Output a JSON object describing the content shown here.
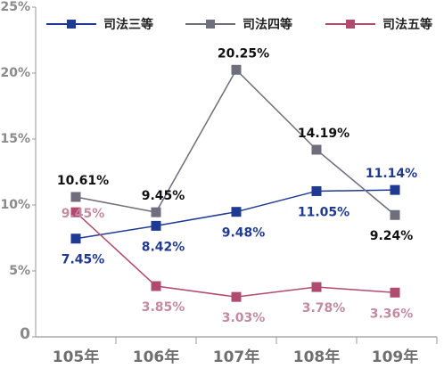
{
  "chart_data": {
    "type": "line",
    "categories": [
      "105年",
      "106年",
      "107年",
      "108年",
      "109年"
    ],
    "ylim": [
      0,
      25
    ],
    "yticks": [
      {
        "value": 0,
        "label": "0"
      },
      {
        "value": 5,
        "label": "5%"
      },
      {
        "value": 10,
        "label": "10%"
      },
      {
        "value": 15,
        "label": "15%"
      },
      {
        "value": 20,
        "label": "20%"
      },
      {
        "value": 25,
        "label": "25%"
      }
    ],
    "grid": false,
    "legend_position": "top",
    "series": [
      {
        "name": "司法三等",
        "color": "#1f3a93",
        "label_color": "#1f3a93",
        "values": [
          7.45,
          8.42,
          9.48,
          11.05,
          11.14
        ],
        "labels": [
          "7.45%",
          "8.42%",
          "9.48%",
          "11.05%",
          "11.14%"
        ],
        "label_side": [
          "below",
          "below",
          "below",
          "below",
          "above"
        ]
      },
      {
        "name": "司法四等",
        "color": "#6e6e7c",
        "label_color": "#111111",
        "values": [
          10.61,
          9.45,
          20.25,
          14.19,
          9.24
        ],
        "labels": [
          "10.61%",
          "9.45%",
          "20.25%",
          "14.19%",
          "9.24%"
        ],
        "label_side": [
          "above",
          "above",
          "above",
          "above",
          "below"
        ]
      },
      {
        "name": "司法五等",
        "color": "#b04a6e",
        "label_color": "#c48aa0",
        "values": [
          9.45,
          3.85,
          3.03,
          3.78,
          3.36
        ],
        "labels": [
          "9.45%",
          "3.85%",
          "3.03%",
          "3.78%",
          "3.36%"
        ],
        "label_side": [
          "on",
          "below",
          "below",
          "below",
          "below"
        ]
      }
    ]
  }
}
